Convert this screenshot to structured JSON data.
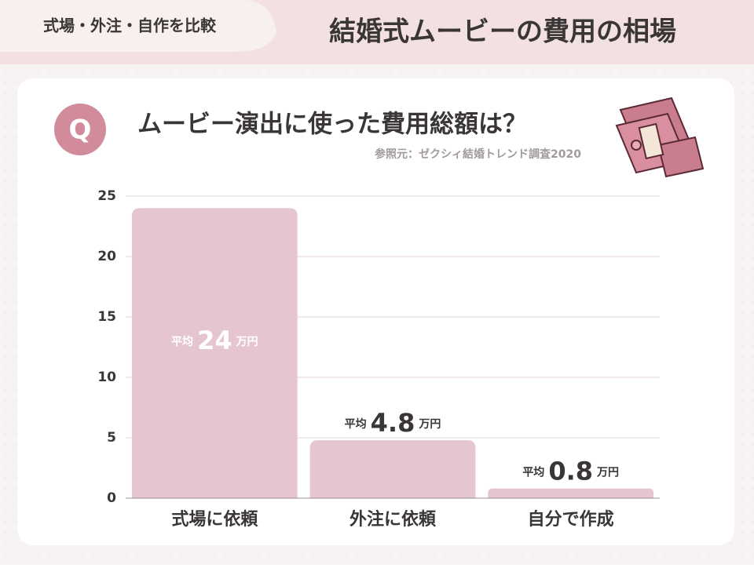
{
  "header": {
    "tab": "式場・外注・自作を比較",
    "title": "結婚式ムービーの費用の相場"
  },
  "chart_data": {
    "type": "bar",
    "badge": "Q",
    "title": "ムービー演出に使った費用総額は？",
    "subtitle": "参照元：ゼクシィ結婚トレンド調査2020",
    "categories": [
      "式場に依頼",
      "外注に依頼",
      "自分で作成"
    ],
    "values": [
      24,
      4.8,
      0.8
    ],
    "value_label_prefix": "平均",
    "value_label_unit": "万円",
    "color": "#e6c6ce",
    "ylim": [
      0,
      25
    ],
    "yticks": [
      0,
      5,
      10,
      15,
      20,
      25
    ],
    "grid": true
  }
}
